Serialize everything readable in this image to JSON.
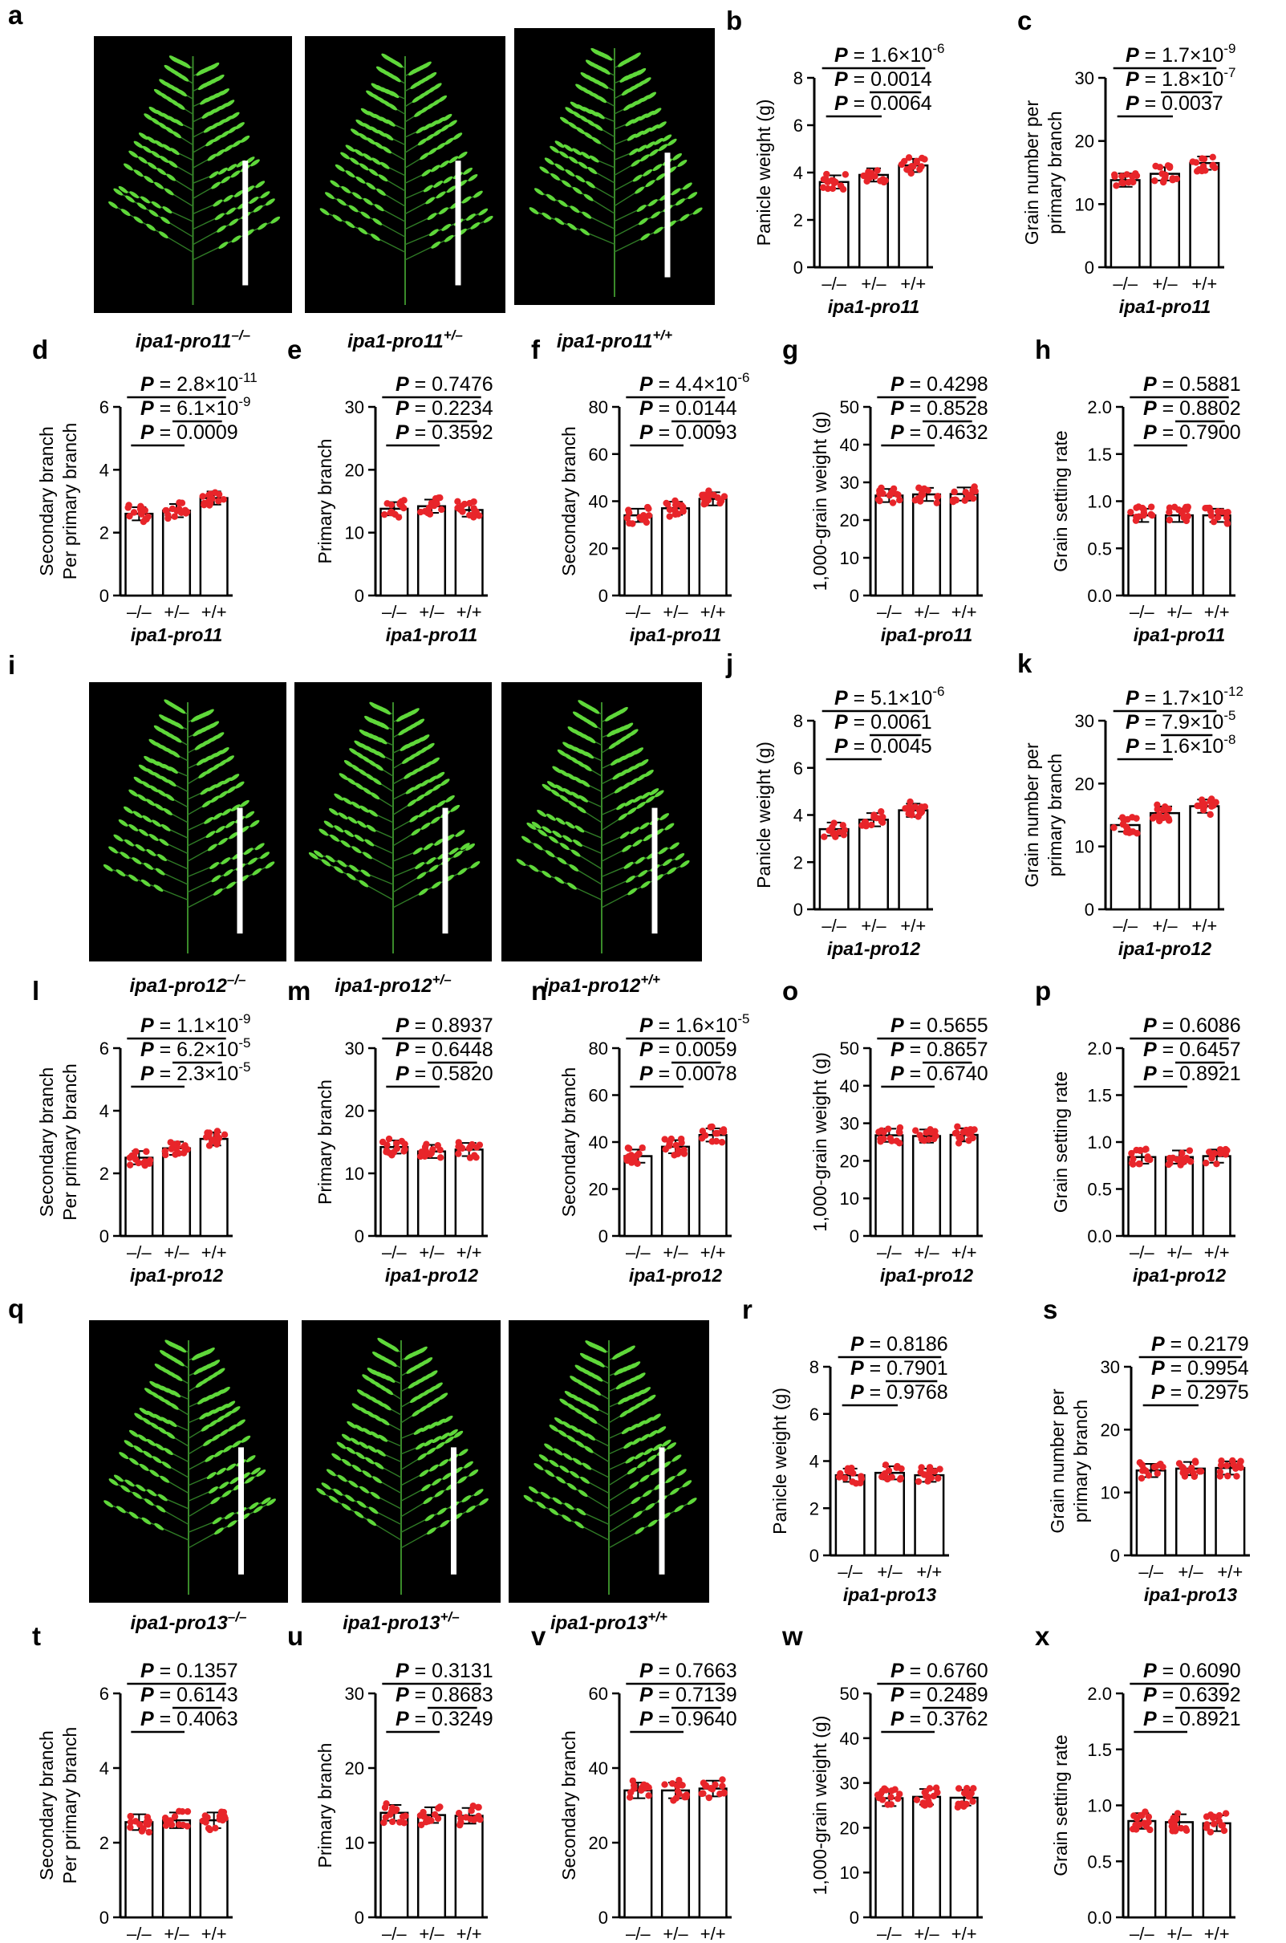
{
  "figure": {
    "genotypes": [
      "–/–",
      "+/–",
      "+/+"
    ],
    "captions": {
      "pro11": [
        "ipa1-pro11–/–",
        "ipa1-pro11+/–",
        "ipa1-pro11+/+"
      ],
      "pro12": [
        "ipa1-pro12–/–",
        "ipa1-pro12+/–",
        "ipa1-pro12+/+"
      ],
      "pro13": [
        "ipa1-pro13–/–",
        "ipa1-pro13+/–",
        "ipa1-pro13+/+"
      ]
    },
    "image_panel_labels": [
      "a",
      "i",
      "q"
    ],
    "colors": {
      "dots": "#e8252a",
      "panicle": "#5fd83a",
      "background": "#000000",
      "scale_bar": "#ffffff"
    }
  },
  "chart_data": [
    {
      "label": "b",
      "type": "bar",
      "ylabel": [
        "Panicle weight (g)"
      ],
      "ylim": [
        0,
        8
      ],
      "yticks": [
        0,
        2,
        4,
        6,
        8
      ],
      "categories": [
        "–/–",
        "+/–",
        "+/+"
      ],
      "values": [
        3.6,
        3.9,
        4.3
      ],
      "group": "ipa1-pro11",
      "pvalues": [
        "P = 1.6×10-6",
        "P = 0.0014",
        "P = 0.0064"
      ]
    },
    {
      "label": "c",
      "type": "bar",
      "ylabel": [
        "Grain number per",
        "primary branch"
      ],
      "ylim": [
        0,
        30
      ],
      "yticks": [
        0,
        10,
        20,
        30
      ],
      "categories": [
        "–/–",
        "+/–",
        "+/+"
      ],
      "values": [
        13.8,
        14.8,
        16.5
      ],
      "group": "ipa1-pro11",
      "pvalues": [
        "P = 1.7×10-9",
        "P = 1.8×10-7",
        "P = 0.0037"
      ]
    },
    {
      "label": "d",
      "type": "bar",
      "ylabel": [
        "Secondary branch",
        "Per primary branch"
      ],
      "ylim": [
        0,
        6
      ],
      "yticks": [
        0,
        2,
        4,
        6
      ],
      "categories": [
        "–/–",
        "+/–",
        "+/+"
      ],
      "values": [
        2.6,
        2.7,
        3.1
      ],
      "group": "ipa1-pro11",
      "pvalues": [
        "P = 2.8×10-11",
        "P = 6.1×10-9",
        "P = 0.0009"
      ]
    },
    {
      "label": "e",
      "type": "bar",
      "ylabel": [
        "Primary branch"
      ],
      "ylim": [
        0,
        30
      ],
      "yticks": [
        0,
        10,
        20,
        30
      ],
      "categories": [
        "–/–",
        "+/–",
        "+/+"
      ],
      "values": [
        13.8,
        14.2,
        13.6
      ],
      "group": "ipa1-pro11",
      "pvalues": [
        "P = 0.7476",
        "P = 0.2234",
        "P = 0.3592"
      ]
    },
    {
      "label": "f",
      "type": "bar",
      "ylabel": [
        "Secondary branch"
      ],
      "ylim": [
        0,
        80
      ],
      "yticks": [
        0,
        20,
        40,
        60,
        80
      ],
      "categories": [
        "–/–",
        "+/–",
        "+/+"
      ],
      "values": [
        34,
        37,
        41
      ],
      "group": "ipa1-pro11",
      "pvalues": [
        "P = 4.4×10-6",
        "P = 0.0144",
        "P = 0.0093"
      ]
    },
    {
      "label": "g",
      "type": "bar",
      "ylabel": [
        "1,000-grain weight (g)"
      ],
      "ylim": [
        0,
        50
      ],
      "yticks": [
        0,
        10,
        20,
        30,
        40,
        50
      ],
      "categories": [
        "–/–",
        "+/–",
        "+/+"
      ],
      "values": [
        26.5,
        26.8,
        26.9
      ],
      "group": "ipa1-pro11",
      "pvalues": [
        "P = 0.4298",
        "P = 0.8528",
        "P = 0.4632"
      ]
    },
    {
      "label": "h",
      "type": "bar",
      "ylabel": [
        "Grain setting rate"
      ],
      "ylim": [
        0,
        2
      ],
      "yticks": [
        "0.0",
        "0.5",
        "1.0",
        "1.5",
        "2.0"
      ],
      "categories": [
        "–/–",
        "+/–",
        "+/+"
      ],
      "values": [
        0.85,
        0.85,
        0.85
      ],
      "group": "ipa1-pro11",
      "pvalues": [
        "P = 0.5881",
        "P = 0.8802",
        "P = 0.7900"
      ]
    },
    {
      "label": "j",
      "type": "bar",
      "ylabel": [
        "Panicle weight (g)"
      ],
      "ylim": [
        0,
        8
      ],
      "yticks": [
        0,
        2,
        4,
        6,
        8
      ],
      "categories": [
        "–/–",
        "+/–",
        "+/+"
      ],
      "values": [
        3.4,
        3.8,
        4.2
      ],
      "group": "ipa1-pro12",
      "pvalues": [
        "P = 5.1×10-6",
        "P = 0.0061",
        "P = 0.0045"
      ]
    },
    {
      "label": "k",
      "type": "bar",
      "ylabel": [
        "Grain number per",
        "primary branch"
      ],
      "ylim": [
        0,
        30
      ],
      "yticks": [
        0,
        10,
        20,
        30
      ],
      "categories": [
        "–/–",
        "+/–",
        "+/+"
      ],
      "values": [
        13.4,
        15.3,
        16.4
      ],
      "group": "ipa1-pro12",
      "pvalues": [
        "P = 1.7×10-12",
        "P = 7.9×10-5",
        "P = 1.6×10-8"
      ]
    },
    {
      "label": "l",
      "type": "bar",
      "ylabel": [
        "Secondary branch",
        "Per primary branch"
      ],
      "ylim": [
        0,
        6
      ],
      "yticks": [
        0,
        2,
        4,
        6
      ],
      "categories": [
        "–/–",
        "+/–",
        "+/+"
      ],
      "values": [
        2.5,
        2.8,
        3.1
      ],
      "group": "ipa1-pro12",
      "pvalues": [
        "P = 1.1×10-9",
        "P = 6.2×10-5",
        "P = 2.3×10-5"
      ]
    },
    {
      "label": "m",
      "type": "bar",
      "ylabel": [
        "Primary branch"
      ],
      "ylim": [
        0,
        30
      ],
      "yticks": [
        0,
        10,
        20,
        30
      ],
      "categories": [
        "–/–",
        "+/–",
        "+/+"
      ],
      "values": [
        14.2,
        13.5,
        13.8
      ],
      "group": "ipa1-pro12",
      "pvalues": [
        "P = 0.8937",
        "P = 0.6448",
        "P = 0.5820"
      ]
    },
    {
      "label": "n",
      "type": "bar",
      "ylabel": [
        "Secondary branch"
      ],
      "ylim": [
        0,
        80
      ],
      "yticks": [
        0,
        20,
        40,
        60,
        80
      ],
      "categories": [
        "–/–",
        "+/–",
        "+/+"
      ],
      "values": [
        34,
        38,
        43
      ],
      "group": "ipa1-pro12",
      "pvalues": [
        "P = 1.6×10-5",
        "P = 0.0059",
        "P = 0.0078"
      ]
    },
    {
      "label": "o",
      "type": "bar",
      "ylabel": [
        "1,000-grain weight (g)"
      ],
      "ylim": [
        0,
        50
      ],
      "yticks": [
        0,
        10,
        20,
        30,
        40,
        50
      ],
      "categories": [
        "–/–",
        "+/–",
        "+/+"
      ],
      "values": [
        26.8,
        26.6,
        26.9
      ],
      "group": "ipa1-pro12",
      "pvalues": [
        "P = 0.5655",
        "P = 0.8657",
        "P = 0.6740"
      ]
    },
    {
      "label": "p",
      "type": "bar",
      "ylabel": [
        "Grain setting rate"
      ],
      "ylim": [
        0,
        2
      ],
      "yticks": [
        "0.0",
        "0.5",
        "1.0",
        "1.5",
        "2.0"
      ],
      "categories": [
        "–/–",
        "+/–",
        "+/+"
      ],
      "values": [
        0.84,
        0.84,
        0.85
      ],
      "group": "ipa1-pro12",
      "pvalues": [
        "P = 0.6086",
        "P = 0.6457",
        "P = 0.8921"
      ]
    },
    {
      "label": "r",
      "type": "bar",
      "ylabel": [
        "Panicle weight (g)"
      ],
      "ylim": [
        0,
        8
      ],
      "yticks": [
        0,
        2,
        4,
        6,
        8
      ],
      "categories": [
        "–/–",
        "+/–",
        "+/+"
      ],
      "values": [
        3.4,
        3.5,
        3.4
      ],
      "group": "ipa1-pro13",
      "pvalues": [
        "P = 0.8186",
        "P = 0.7901",
        "P = 0.9768"
      ]
    },
    {
      "label": "s",
      "type": "bar",
      "ylabel": [
        "Grain number per",
        "primary branch"
      ],
      "ylim": [
        0,
        30
      ],
      "yticks": [
        0,
        10,
        20,
        30
      ],
      "categories": [
        "–/–",
        "+/–",
        "+/+"
      ],
      "values": [
        13.5,
        13.8,
        13.9
      ],
      "group": "ipa1-pro13",
      "pvalues": [
        "P = 0.2179",
        "P = 0.9954",
        "P = 0.2975"
      ]
    },
    {
      "label": "t",
      "type": "bar",
      "ylabel": [
        "Secondary branch",
        "Per primary branch"
      ],
      "ylim": [
        0,
        6
      ],
      "yticks": [
        0,
        2,
        4,
        6
      ],
      "categories": [
        "–/–",
        "+/–",
        "+/+"
      ],
      "values": [
        2.55,
        2.6,
        2.6
      ],
      "group": "ipa1-pro13",
      "pvalues": [
        "P = 0.1357",
        "P = 0.6143",
        "P = 0.4063"
      ]
    },
    {
      "label": "u",
      "type": "bar",
      "ylabel": [
        "Primary branch"
      ],
      "ylim": [
        0,
        30
      ],
      "yticks": [
        0,
        10,
        20,
        30
      ],
      "categories": [
        "–/–",
        "+/–",
        "+/+"
      ],
      "values": [
        14.0,
        13.7,
        13.6
      ],
      "group": "ipa1-pro13",
      "pvalues": [
        "P = 0.3131",
        "P = 0.8683",
        "P = 0.3249"
      ]
    },
    {
      "label": "v",
      "type": "bar",
      "ylabel": [
        "Secondary branch"
      ],
      "ylim": [
        0,
        60
      ],
      "yticks": [
        0,
        20,
        40,
        60
      ],
      "categories": [
        "–/–",
        "+/–",
        "+/+"
      ],
      "values": [
        34,
        34,
        34.5
      ],
      "group": "ipa1-pro13",
      "pvalues": [
        "P = 0.7663",
        "P = 0.7139",
        "P = 0.9640"
      ]
    },
    {
      "label": "w",
      "type": "bar",
      "ylabel": [
        "1,000-grain weight (g)"
      ],
      "ylim": [
        0,
        50
      ],
      "yticks": [
        0,
        10,
        20,
        30,
        40,
        50
      ],
      "categories": [
        "–/–",
        "+/–",
        "+/+"
      ],
      "values": [
        26.6,
        26.9,
        26.7
      ],
      "group": "ipa1-pro13",
      "pvalues": [
        "P = 0.6760",
        "P = 0.2489",
        "P = 0.3762"
      ]
    },
    {
      "label": "x",
      "type": "bar",
      "ylabel": [
        "Grain setting rate"
      ],
      "ylim": [
        0,
        2
      ],
      "yticks": [
        "0.0",
        "0.5",
        "1.0",
        "1.5",
        "2.0"
      ],
      "categories": [
        "–/–",
        "+/–",
        "+/+"
      ],
      "values": [
        0.86,
        0.85,
        0.84
      ],
      "group": "ipa1-pro13",
      "pvalues": [
        "P = 0.6090",
        "P = 0.6392",
        "P = 0.8921"
      ]
    }
  ]
}
